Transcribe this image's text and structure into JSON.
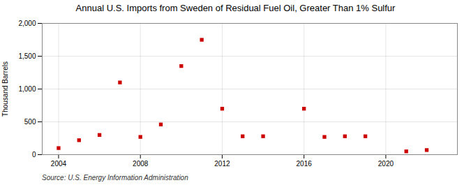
{
  "chart_data": {
    "type": "scatter",
    "title": "Annual U.S. Imports from Sweden of Residual Fuel Oil, Greater Than 1% Sulfur",
    "ylabel": "Thousand Barrels",
    "caption": "Source: U.S. Energy Information Administration",
    "x": [
      2004,
      2005,
      2006,
      2007,
      2008,
      2009,
      2010,
      2011,
      2012,
      2013,
      2014,
      2016,
      2017,
      2018,
      2019,
      2021,
      2022
    ],
    "values": [
      100,
      220,
      300,
      1100,
      270,
      460,
      1350,
      1750,
      700,
      280,
      280,
      700,
      270,
      280,
      280,
      50,
      70
    ],
    "color": "#cc0000",
    "marker": "square",
    "xlim": [
      2003.2,
      2023.5
    ],
    "xticks": [
      2004,
      2008,
      2012,
      2016,
      2020
    ],
    "ylim": [
      0,
      2000
    ],
    "yticks": [
      0,
      500,
      {
        "value": 1000,
        "label": "1,000"
      },
      {
        "value": 1500,
        "label": "1,500"
      },
      {
        "value": 2000,
        "label": "2,000"
      }
    ],
    "grid": true
  }
}
